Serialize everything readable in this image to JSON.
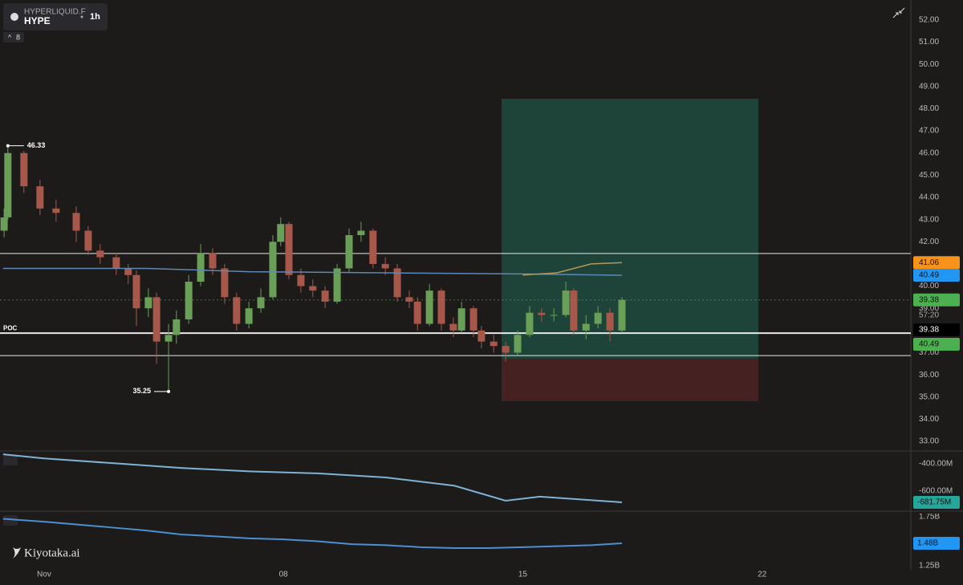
{
  "header": {
    "exchange": "HYPERLIQUID.F",
    "symbol": "HYPE",
    "interval": "1h",
    "indicator_count": "8"
  },
  "logo": "Kiyotaka.ai",
  "chart_data": {
    "type": "candlestick",
    "up_color": "#6a9f58",
    "down_color": "#a8584a",
    "xlim": [
      -1.29,
      25.35
    ],
    "xticks": [
      {
        "value": 0,
        "label": "Nov"
      },
      {
        "value": 7,
        "label": "08"
      },
      {
        "value": 14,
        "label": "15"
      },
      {
        "value": 21,
        "label": "22"
      }
    ],
    "ylim": [
      32.64,
      52.9
    ],
    "yticks": [
      {
        "value": 33,
        "label": "33.00"
      },
      {
        "value": 34,
        "label": "34.00"
      },
      {
        "value": 35,
        "label": "35.00"
      },
      {
        "value": 36,
        "label": "36.00"
      },
      {
        "value": 37,
        "label": "37.00"
      },
      {
        "value": 38,
        "label": "38.00"
      },
      {
        "value": 39,
        "label": "39.00"
      },
      {
        "value": 40,
        "label": "40.00"
      },
      {
        "value": 41,
        "label": "41.00"
      },
      {
        "value": 42,
        "label": "42.00"
      },
      {
        "value": 43,
        "label": "43.00"
      },
      {
        "value": 44,
        "label": "44.00"
      },
      {
        "value": 45,
        "label": "45.00"
      },
      {
        "value": 46,
        "label": "46.00"
      },
      {
        "value": 47,
        "label": "47.00"
      },
      {
        "value": 48,
        "label": "48.00"
      },
      {
        "value": 49,
        "label": "49.00"
      },
      {
        "value": 50,
        "label": "50.00"
      },
      {
        "value": 51,
        "label": "51.00"
      },
      {
        "value": 52,
        "label": "52.00"
      }
    ],
    "x": [
      -1.17,
      -1.06,
      -0.59,
      -0.12,
      0.35,
      0.94,
      1.29,
      1.64,
      2.11,
      2.46,
      2.7,
      3.05,
      3.29,
      3.64,
      3.87,
      4.23,
      4.58,
      4.93,
      5.28,
      5.63,
      5.99,
      6.34,
      6.69,
      6.92,
      7.16,
      7.51,
      7.86,
      8.22,
      8.57,
      8.92,
      9.27,
      9.62,
      9.98,
      10.33,
      10.68,
      10.92,
      11.27,
      11.62,
      11.97,
      12.21,
      12.56,
      12.79,
      13.15,
      13.5,
      13.85,
      14.2,
      14.55,
      14.91,
      15.26,
      15.49,
      15.85,
      16.2,
      16.55,
      16.9
    ],
    "open": [
      42.5,
      43.1,
      46.0,
      44.5,
      43.5,
      43.3,
      42.5,
      41.6,
      41.3,
      40.8,
      40.5,
      39.0,
      39.5,
      37.5,
      37.8,
      38.5,
      40.2,
      41.5,
      40.8,
      39.5,
      38.3,
      39.0,
      39.5,
      42.0,
      42.8,
      40.5,
      40.0,
      39.8,
      39.3,
      40.8,
      42.3,
      42.5,
      41.0,
      40.8,
      39.5,
      39.3,
      38.3,
      39.8,
      38.3,
      38.0,
      39.0,
      38.0,
      37.5,
      37.3,
      37.0,
      37.8,
      38.8,
      38.7,
      38.7,
      39.8,
      38.0,
      38.3,
      38.8,
      38.0
    ],
    "high": [
      43.5,
      46.33,
      46.1,
      44.8,
      43.9,
      43.6,
      42.7,
      41.9,
      41.5,
      41.0,
      40.7,
      39.9,
      39.7,
      38.3,
      38.9,
      40.5,
      41.9,
      41.7,
      41.0,
      39.7,
      39.3,
      39.9,
      42.3,
      43.1,
      42.9,
      40.8,
      40.3,
      40.0,
      41.0,
      42.6,
      42.9,
      42.6,
      41.3,
      41.0,
      39.8,
      39.5,
      40.1,
      39.9,
      38.6,
      39.3,
      39.1,
      38.2,
      37.8,
      37.5,
      38.0,
      39.1,
      39.0,
      39.0,
      40.2,
      39.9,
      38.7,
      39.1,
      39.0,
      39.5
    ],
    "low": [
      42.2,
      43.0,
      44.2,
      43.2,
      42.9,
      42.0,
      41.4,
      41.0,
      40.5,
      40.1,
      38.2,
      38.6,
      36.5,
      35.25,
      37.4,
      38.3,
      40.0,
      40.5,
      39.2,
      38.0,
      38.1,
      38.8,
      39.4,
      41.8,
      40.3,
      39.7,
      39.5,
      39.0,
      39.2,
      40.6,
      42.0,
      40.8,
      40.5,
      39.3,
      39.0,
      38.0,
      38.2,
      38.0,
      37.7,
      37.9,
      37.7,
      37.2,
      37.0,
      36.6,
      36.9,
      37.7,
      38.4,
      38.4,
      38.6,
      37.8,
      37.6,
      38.1,
      37.5,
      37.9
    ],
    "close": [
      43.1,
      46.0,
      44.5,
      43.5,
      43.3,
      42.5,
      41.6,
      41.3,
      40.8,
      40.5,
      39.0,
      39.5,
      37.5,
      37.8,
      38.5,
      40.2,
      41.5,
      40.8,
      39.5,
      38.3,
      39.0,
      39.5,
      42.0,
      42.8,
      40.5,
      40.0,
      39.8,
      39.3,
      40.8,
      42.3,
      42.5,
      41.0,
      40.8,
      39.5,
      39.3,
      38.3,
      39.8,
      38.3,
      38.0,
      39.0,
      38.0,
      37.5,
      37.3,
      37.0,
      37.8,
      38.8,
      38.7,
      38.7,
      39.8,
      38.0,
      38.3,
      38.8,
      38.0,
      39.38
    ],
    "overlays": [
      {
        "color": "#5f87b5",
        "x": [
          -1.2,
          3,
          6,
          10,
          14,
          16.9
        ],
        "values": [
          40.8,
          40.8,
          40.65,
          40.6,
          40.55,
          40.49
        ]
      },
      {
        "color": "#b39a5a",
        "x": [
          14,
          15,
          16,
          16.9
        ],
        "values": [
          40.5,
          40.6,
          41.0,
          41.06
        ]
      }
    ],
    "levels": [
      41.47,
      37.88,
      36.87
    ],
    "poc_label": "POC",
    "poc_level": 37.88,
    "high_annotation": {
      "x": -1.06,
      "value": 46.33
    },
    "low_annotation": {
      "x": 3.64,
      "value": 35.25
    },
    "position": {
      "x": [
        13.38,
        20.89
      ],
      "target": 48.45,
      "entry": 36.73,
      "stop": 34.81
    },
    "price_tags": [
      {
        "value": 41.06,
        "color": "#f7931a"
      },
      {
        "value": 40.49,
        "color": "#2196f3"
      },
      {
        "value": 39.38,
        "color": "#4caf50"
      }
    ],
    "countdown": "57:20",
    "stack_tags": [
      {
        "value": 39.38,
        "color": "#000000"
      },
      {
        "value": 40.49,
        "color": "#4caf50"
      }
    ],
    "panes": [
      {
        "ylim": [
          -735,
          -323.5
        ],
        "yticks": [
          {
            "value": -400,
            "label": "-400.00M"
          },
          {
            "value": -600,
            "label": "-600.00M"
          }
        ],
        "color": "#7fb3d5",
        "x": [
          -1.2,
          0,
          2,
          4,
          6,
          8,
          10,
          12,
          13.5,
          14.5,
          16.9
        ],
        "values": [
          -330,
          -360,
          -395,
          -430,
          -455,
          -470,
          -500,
          -560,
          -670,
          -640,
          -681.75
        ],
        "tag": {
          "value": -681.75,
          "label": "-681.75M",
          "color": "#26a69a"
        }
      },
      {
        "ylim": [
          1.209,
          1.783
        ],
        "yticks": [
          {
            "value": 1.75,
            "label": "1.75B"
          },
          {
            "value": 1.25,
            "label": "1.25B"
          }
        ],
        "color": "#4a8fd0",
        "x": [
          -1.2,
          0,
          1,
          2,
          3,
          4,
          5,
          6,
          7,
          8,
          9,
          10,
          11,
          12,
          13,
          14,
          15,
          16,
          16.9
        ],
        "values": [
          1.73,
          1.7,
          1.67,
          1.64,
          1.61,
          1.57,
          1.55,
          1.53,
          1.52,
          1.5,
          1.47,
          1.46,
          1.44,
          1.43,
          1.43,
          1.44,
          1.45,
          1.46,
          1.48
        ],
        "tag": {
          "value": 1.48,
          "label": "1.48B",
          "color": "#2196f3"
        }
      }
    ]
  }
}
